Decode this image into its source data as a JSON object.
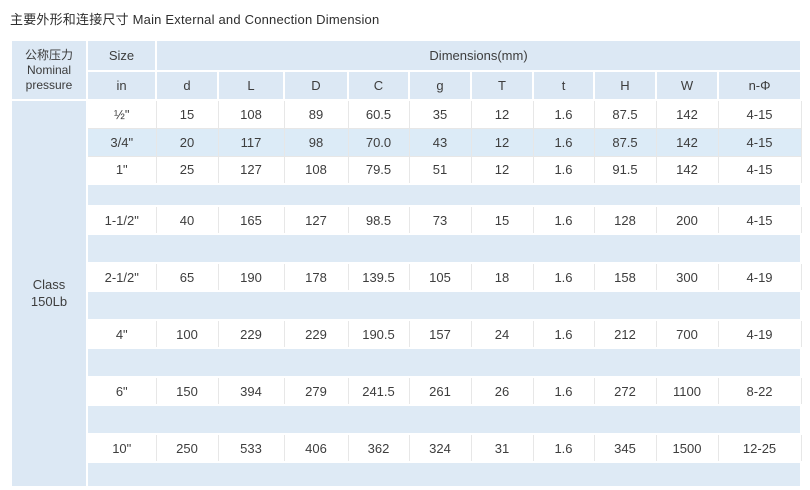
{
  "title": "主要外形和连接尺寸 Main External and Connection Dimension",
  "colors": {
    "header_blue": "#dce8f4",
    "spacer_blue": "#deeaf5",
    "striped_row_blue": "#dcebf7",
    "grid_line": "#e7e7e7",
    "text": "#3d3d3d"
  },
  "table": {
    "pressure_header_zh": "公称压力",
    "pressure_header_en": "Nominal pressure",
    "size_label": "Size",
    "size_unit": "in",
    "dimensions_label": "Dimensions(mm)",
    "columns": [
      "d",
      "L",
      "D",
      "C",
      "g",
      "T",
      "t",
      "H",
      "W",
      "n-Φ"
    ],
    "pressure_class": "Class\n150Lb",
    "rows": [
      {
        "size": "½\"",
        "values": [
          "15",
          "108",
          "89",
          "60.5",
          "35",
          "12",
          "1.6",
          "87.5",
          "142",
          "4-15"
        ],
        "shaded": false
      },
      {
        "size": "3/4\"",
        "values": [
          "20",
          "117",
          "98",
          "70.0",
          "43",
          "12",
          "1.6",
          "87.5",
          "142",
          "4-15"
        ],
        "shaded": true
      },
      {
        "size": "1\"",
        "values": [
          "25",
          "127",
          "108",
          "79.5",
          "51",
          "12",
          "1.6",
          "91.5",
          "142",
          "4-15"
        ],
        "shaded": false,
        "gap_after": 22
      },
      {
        "size": "1-1/2\"",
        "values": [
          "40",
          "165",
          "127",
          "98.5",
          "73",
          "15",
          "1.6",
          "128",
          "200",
          "4-15"
        ],
        "shaded": false,
        "gap_after": 29
      },
      {
        "size": "2-1/2\"",
        "values": [
          "65",
          "190",
          "178",
          "139.5",
          "105",
          "18",
          "1.6",
          "158",
          "300",
          "4-19"
        ],
        "shaded": false,
        "gap_after": 29
      },
      {
        "size": "4\"",
        "values": [
          "100",
          "229",
          "229",
          "190.5",
          "157",
          "24",
          "1.6",
          "212",
          "700",
          "4-19"
        ],
        "shaded": false,
        "gap_after": 29
      },
      {
        "size": "6\"",
        "values": [
          "150",
          "394",
          "279",
          "241.5",
          "261",
          "26",
          "1.6",
          "272",
          "1100",
          "8-22"
        ],
        "shaded": false,
        "gap_after": 29
      },
      {
        "size": "10\"",
        "values": [
          "250",
          "533",
          "406",
          "362",
          "324",
          "31",
          "1.6",
          "345",
          "1500",
          "12-25"
        ],
        "shaded": false,
        "gap_after": 25
      }
    ]
  }
}
